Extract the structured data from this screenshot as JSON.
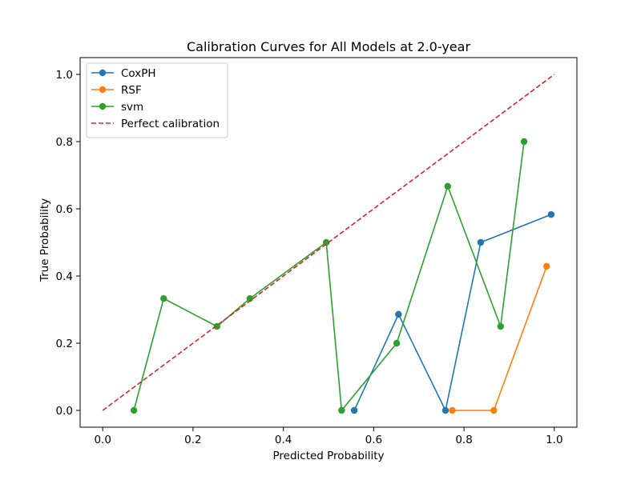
{
  "chart_data": {
    "type": "line",
    "title": "Calibration Curves for All Models at 2.0-year",
    "xlabel": "Predicted Probability",
    "ylabel": "True Probability",
    "xlim": [
      -0.05,
      1.05
    ],
    "ylim": [
      -0.05,
      1.05
    ],
    "xticks": [
      0.0,
      0.2,
      0.4,
      0.6,
      0.8,
      1.0
    ],
    "yticks": [
      0.0,
      0.2,
      0.4,
      0.6,
      0.8,
      1.0
    ],
    "xtick_labels": [
      "0.0",
      "0.2",
      "0.4",
      "0.6",
      "0.8",
      "1.0"
    ],
    "ytick_labels": [
      "0.0",
      "0.2",
      "0.4",
      "0.6",
      "0.8",
      "1.0"
    ],
    "grid": false,
    "legend_position": "top-left",
    "series": [
      {
        "name": "CoxPH",
        "color": "#1f77b4",
        "marker": "circle",
        "x": [
          0.557,
          0.655,
          0.759,
          0.837,
          0.993
        ],
        "y": [
          0.0,
          0.286,
          0.0,
          0.5,
          0.583
        ]
      },
      {
        "name": "RSF",
        "color": "#ff7f0e",
        "marker": "circle",
        "x": [
          0.774,
          0.866,
          0.983
        ],
        "y": [
          0.0,
          0.0,
          0.429
        ]
      },
      {
        "name": "svm",
        "color": "#2ca02c",
        "marker": "circle",
        "x": [
          0.069,
          0.135,
          0.253,
          0.326,
          0.495,
          0.529,
          0.651,
          0.764,
          0.881,
          0.933
        ],
        "y": [
          0.0,
          0.333,
          0.25,
          0.333,
          0.5,
          0.0,
          0.2,
          0.667,
          0.25,
          0.8
        ]
      },
      {
        "name": "Perfect calibration",
        "color": "#d62728",
        "dashed": true,
        "x": [
          0.0,
          1.0
        ],
        "y": [
          0.0,
          1.0
        ]
      }
    ]
  }
}
